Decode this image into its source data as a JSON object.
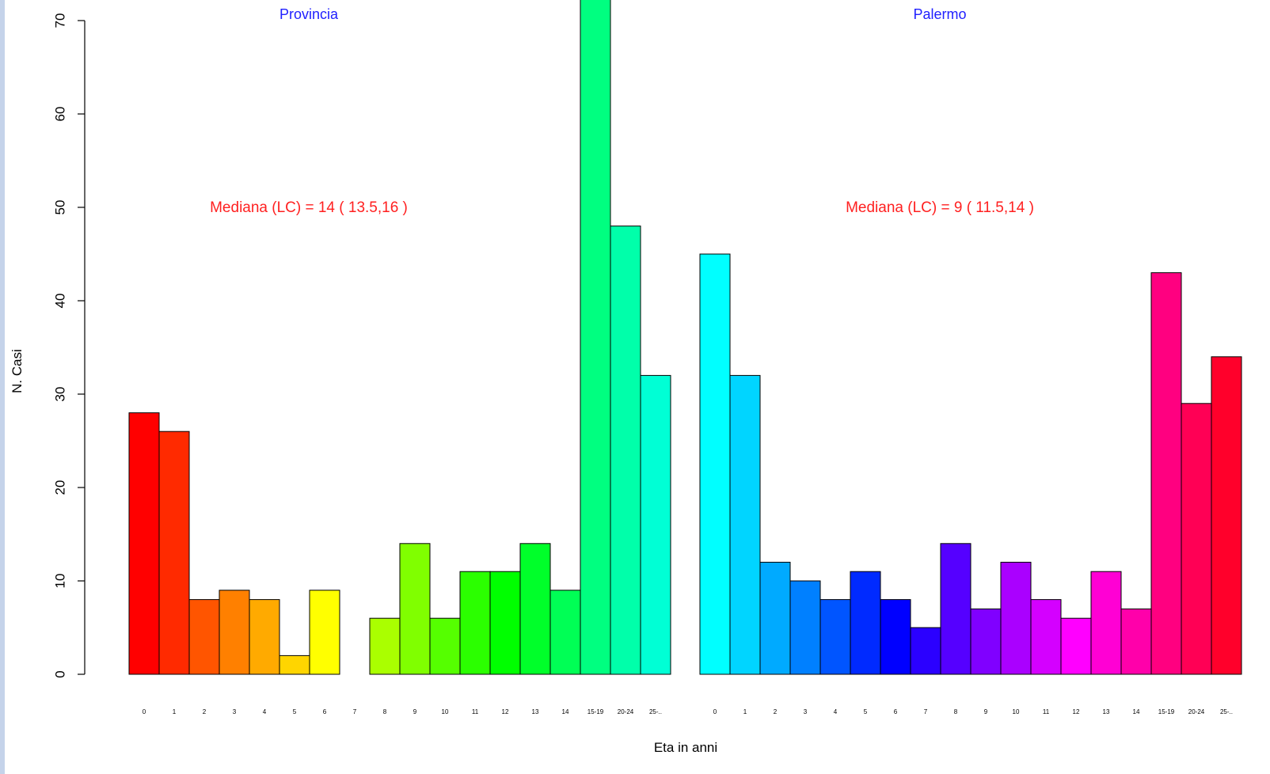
{
  "chart_data": {
    "type": "bar",
    "ylabel": "N. Casi",
    "xlabel": "Eta in anni",
    "ylim": [
      0,
      70
    ],
    "yticks": [
      0,
      10,
      20,
      30,
      40,
      50,
      60,
      70
    ],
    "grid": false,
    "panels": [
      {
        "title": "Provincia",
        "annotation": "Mediana (LC) = 14 ( 13.5,16 )",
        "categories": [
          "0",
          "1",
          "2",
          "3",
          "4",
          "5",
          "6",
          "7",
          "8",
          "9",
          "10",
          "11",
          "12",
          "13",
          "14",
          "15-19",
          "20-24",
          "25-.."
        ],
        "values": [
          28,
          26,
          8,
          9,
          8,
          2,
          9,
          0,
          6,
          14,
          6,
          11,
          11,
          14,
          9,
          73,
          48,
          32
        ]
      },
      {
        "title": "Palermo",
        "annotation": "Mediana (LC) = 9 ( 11.5,14 )",
        "categories": [
          "0",
          "1",
          "2",
          "3",
          "4",
          "5",
          "6",
          "7",
          "8",
          "9",
          "10",
          "11",
          "12",
          "13",
          "14",
          "15-19",
          "20-24",
          "25-.."
        ],
        "values": [
          45,
          32,
          12,
          10,
          8,
          11,
          8,
          5,
          14,
          7,
          12,
          8,
          6,
          11,
          7,
          43,
          29,
          34
        ]
      }
    ],
    "colors": {
      "title": "#2020ff",
      "annotation": "#ff2020",
      "strip": "#c5d3ea"
    }
  }
}
